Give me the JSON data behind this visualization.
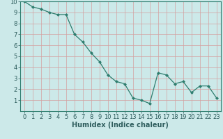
{
  "title": "",
  "xlabel": "Humidex (Indice chaleur)",
  "x_values": [
    0,
    1,
    2,
    3,
    4,
    5,
    6,
    7,
    8,
    9,
    10,
    11,
    12,
    13,
    14,
    15,
    16,
    17,
    18,
    19,
    20,
    21,
    22,
    23
  ],
  "y_values": [
    10.0,
    9.5,
    9.3,
    9.0,
    8.8,
    8.8,
    7.0,
    6.3,
    5.3,
    4.5,
    3.3,
    2.7,
    2.5,
    1.2,
    1.0,
    0.7,
    3.5,
    3.3,
    2.5,
    2.7,
    1.7,
    2.3,
    2.3,
    1.2
  ],
  "line_color": "#2e7d6e",
  "marker": "D",
  "marker_size": 2.5,
  "bg_color": "#cce9e9",
  "grid_color": "#d4a0a0",
  "axis_color": "#2e7d6e",
  "tick_label_color": "#2e5d5d",
  "ylim": [
    0,
    10
  ],
  "xlim": [
    -0.5,
    23.5
  ],
  "yticks": [
    1,
    2,
    3,
    4,
    5,
    6,
    7,
    8,
    9,
    10
  ],
  "xticks": [
    0,
    1,
    2,
    3,
    4,
    5,
    6,
    7,
    8,
    9,
    10,
    11,
    12,
    13,
    14,
    15,
    16,
    17,
    18,
    19,
    20,
    21,
    22,
    23
  ],
  "label_fontsize": 7,
  "tick_fontsize": 6
}
